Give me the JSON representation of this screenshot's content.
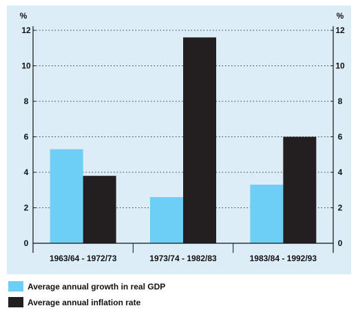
{
  "chart_data": {
    "type": "bar",
    "categories": [
      "1963/64 - 1972/73",
      "1973/74 - 1982/83",
      "1983/84 - 1992/93"
    ],
    "series": [
      {
        "name": "Average annual growth in real GDP",
        "values": [
          5.3,
          2.6,
          3.3
        ],
        "color": "#6dcff6"
      },
      {
        "name": "Average annual inflation rate",
        "values": [
          3.8,
          11.6,
          6.0
        ],
        "color": "#231f20"
      }
    ],
    "yticks": [
      0,
      2,
      4,
      6,
      8,
      10,
      12
    ],
    "ylim": [
      0,
      12
    ],
    "ylabel_left": "%",
    "ylabel_right": "%",
    "grid": true,
    "grid_style": "dotted",
    "legend_position": "bottom-left",
    "background_color": "#dcedf8"
  }
}
